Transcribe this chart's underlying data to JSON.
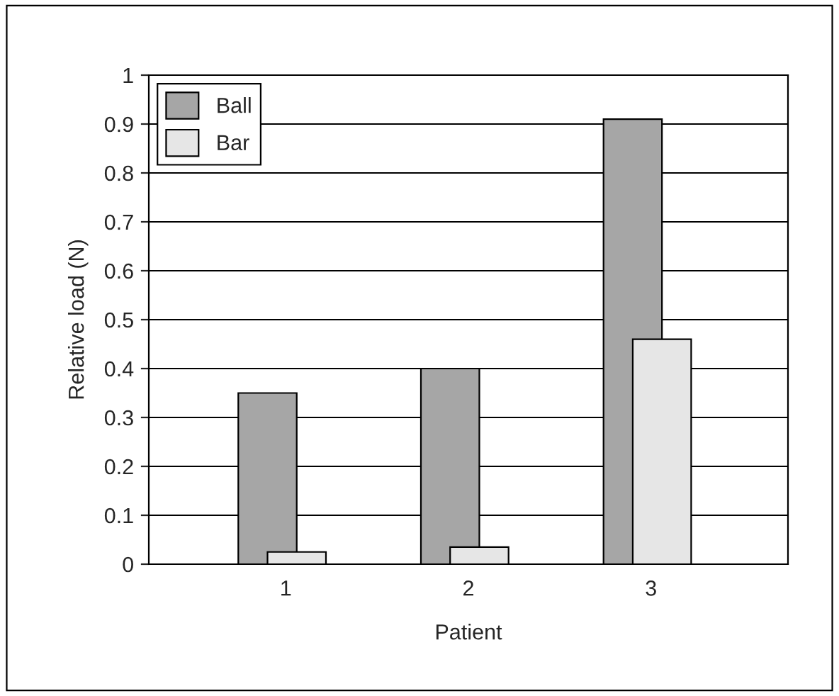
{
  "chart_data": {
    "type": "bar",
    "xlabel": "Patient",
    "ylabel": "Relative load (N)",
    "categories": [
      "1",
      "2",
      "3"
    ],
    "series": [
      {
        "name": "Ball",
        "color": "#a6a6a6",
        "values": [
          0.35,
          0.4,
          0.91
        ]
      },
      {
        "name": "Bar",
        "color": "#e6e6e6",
        "values": [
          0.025,
          0.035,
          0.46
        ]
      }
    ],
    "ylim": [
      0,
      1
    ],
    "yticks": [
      0,
      0.1,
      0.2,
      0.3,
      0.4,
      0.5,
      0.6,
      0.7,
      0.8,
      0.9,
      1
    ],
    "grid": "y",
    "legend": "top left"
  }
}
